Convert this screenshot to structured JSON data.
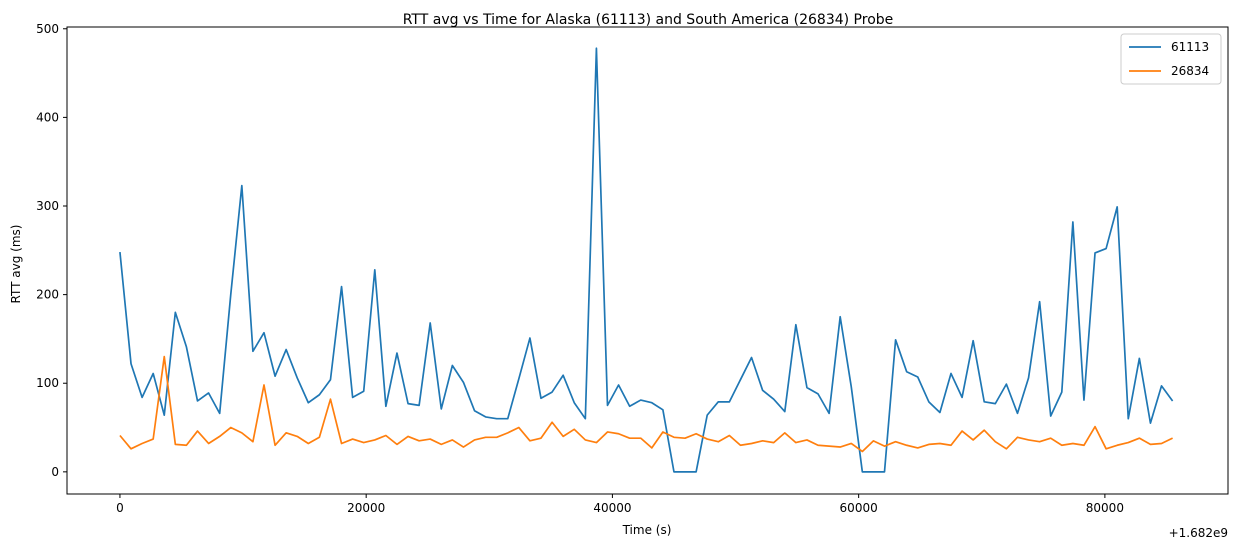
{
  "chart_data": {
    "type": "line",
    "title": "RTT avg vs Time for Alaska (61113) and South America (26834) Probe",
    "xlabel": "Time (s)",
    "ylabel": "RTT avg (ms)",
    "x_offset_text": "+1.682e9",
    "xlim": [
      -4300,
      90000
    ],
    "ylim": [
      -25,
      502
    ],
    "xticks": [
      0,
      20000,
      40000,
      60000,
      80000
    ],
    "xtick_labels": [
      "0",
      "20000",
      "40000",
      "60000",
      "80000"
    ],
    "yticks": [
      0,
      100,
      200,
      300,
      400,
      500
    ],
    "ytick_labels": [
      "0",
      "100",
      "200",
      "300",
      "400",
      "500"
    ],
    "grid": false,
    "legend_position": "upper-right",
    "x": [
      0,
      900,
      1800,
      2700,
      3600,
      4500,
      5400,
      6300,
      7200,
      8100,
      9000,
      9900,
      10800,
      11700,
      12600,
      13500,
      14400,
      15300,
      16200,
      17100,
      18000,
      18900,
      19800,
      20700,
      21600,
      22500,
      23400,
      24300,
      25200,
      26100,
      27000,
      27900,
      28800,
      29700,
      30600,
      31500,
      32400,
      33300,
      34200,
      35100,
      36000,
      36900,
      37800,
      38700,
      39600,
      40500,
      41400,
      42300,
      43200,
      44100,
      45000,
      45900,
      46800,
      47700,
      48600,
      49500,
      50400,
      51300,
      52200,
      53100,
      54000,
      54900,
      55800,
      56700,
      57600,
      58500,
      59400,
      60300,
      61200,
      62100,
      63000,
      63900,
      64800,
      65700,
      66600,
      67500,
      68400,
      69300,
      70200,
      71100,
      72000,
      72900,
      73800,
      74700,
      75600,
      76500,
      77400,
      78300,
      79200,
      80100,
      81000,
      81900,
      82800,
      83700,
      84600,
      85500
    ],
    "series": [
      {
        "name": "61113",
        "color": "#1f77b4",
        "values": [
          248,
          122,
          84,
          111,
          64,
          180,
          141,
          80,
          89,
          66,
          200,
          323,
          136,
          157,
          108,
          138,
          106,
          78,
          87,
          104,
          209,
          84,
          91,
          228,
          74,
          134,
          77,
          75,
          168,
          71,
          120,
          101,
          69,
          62,
          60,
          60,
          105,
          151,
          83,
          90,
          109,
          78,
          60,
          478,
          75,
          98,
          74,
          81,
          78,
          70,
          0,
          0,
          0,
          64,
          79,
          79,
          104,
          129,
          92,
          82,
          68,
          166,
          95,
          88,
          66,
          175,
          96,
          0,
          0,
          0,
          149,
          113,
          107,
          79,
          67,
          111,
          84,
          148,
          79,
          77,
          99,
          66,
          106,
          192,
          63,
          90,
          282,
          81,
          247,
          252,
          299,
          60,
          128,
          55,
          97,
          80
        ]
      },
      {
        "name": "26834",
        "color": "#ff7f0e",
        "values": [
          41,
          26,
          32,
          37,
          130,
          31,
          30,
          46,
          32,
          40,
          50,
          44,
          34,
          98,
          30,
          44,
          40,
          32,
          39,
          82,
          32,
          37,
          33,
          36,
          41,
          31,
          40,
          35,
          37,
          31,
          36,
          28,
          36,
          39,
          39,
          44,
          50,
          35,
          38,
          56,
          40,
          48,
          36,
          33,
          45,
          43,
          38,
          38,
          27,
          45,
          39,
          38,
          43,
          37,
          34,
          41,
          30,
          32,
          35,
          33,
          44,
          33,
          36,
          30,
          29,
          28,
          32,
          23,
          35,
          29,
          34,
          30,
          27,
          31,
          32,
          30,
          46,
          36,
          47,
          34,
          26,
          39,
          36,
          34,
          38,
          30,
          32,
          30,
          51,
          26,
          30,
          33,
          38,
          31,
          32,
          38
        ]
      }
    ]
  }
}
